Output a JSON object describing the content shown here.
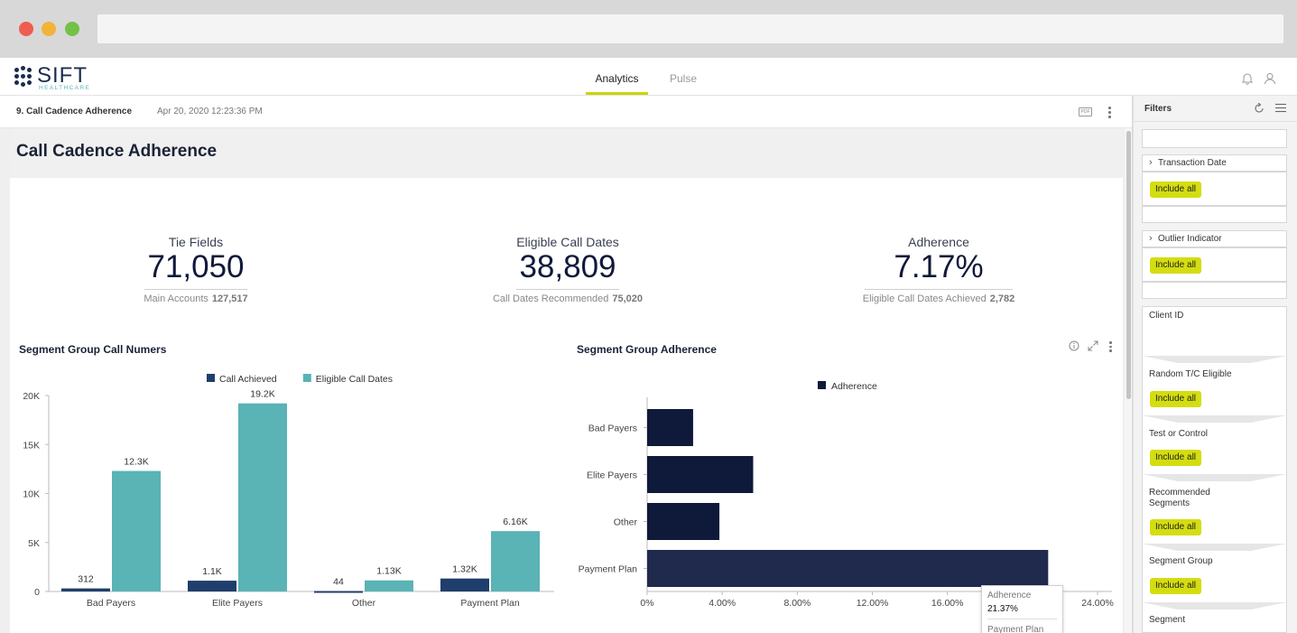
{
  "app": {
    "logo_text": "SIFT",
    "logo_sub": "HEALTHCARE",
    "tabs": [
      {
        "label": "Analytics",
        "active": true
      },
      {
        "label": "Pulse",
        "active": false
      }
    ],
    "icons": [
      "bell-icon",
      "user-icon"
    ]
  },
  "dashboard": {
    "name": "9. Call Cadence Adherence",
    "timestamp": "Apr 20, 2020 12:23:36 PM",
    "pdf_label": "PDF",
    "title": "Call Cadence Adherence"
  },
  "kpis": [
    {
      "label": "Tie Fields",
      "value": "71,050",
      "sub_label": "Main Accounts",
      "sub_value": "127,517"
    },
    {
      "label": "Eligible Call Dates",
      "value": "38,809",
      "sub_label": "Call Dates Recommended",
      "sub_value": "75,020"
    },
    {
      "label": "Adherence",
      "value": "7.17%",
      "sub_label": "Eligible Call Dates Achieved",
      "sub_value": "2,782"
    }
  ],
  "chart_data": [
    {
      "type": "bar",
      "title": "Segment Group Call Numers",
      "categories": [
        "Bad Payers",
        "Elite Payers",
        "Other",
        "Payment Plan"
      ],
      "series": [
        {
          "name": "Call Achieved",
          "color": "#1f3e6b",
          "values": [
            312,
            1100,
            44,
            1320
          ],
          "labels": [
            "312",
            "1.1K",
            "44",
            "1.32K"
          ]
        },
        {
          "name": "Eligible Call Dates",
          "color": "#5ab3b5",
          "values": [
            12300,
            19200,
            1130,
            6160
          ],
          "labels": [
            "12.3K",
            "19.2K",
            "1.13K",
            "6.16K"
          ]
        }
      ],
      "ylim": [
        0,
        20000
      ],
      "yticks": [
        "0",
        "5K",
        "10K",
        "15K",
        "20K"
      ],
      "xlabel": "",
      "ylabel": "",
      "legend_position": "top"
    },
    {
      "type": "bar",
      "orientation": "horizontal",
      "title": "Segment Group Adherence",
      "categories": [
        "Bad Payers",
        "Elite Payers",
        "Other",
        "Payment Plan"
      ],
      "series": [
        {
          "name": "Adherence",
          "color": "#0f1a3a",
          "values": [
            2.45,
            5.65,
            3.85,
            21.37
          ]
        }
      ],
      "xlim": [
        0,
        24
      ],
      "xticks": [
        "0%",
        "4.00%",
        "8.00%",
        "12.00%",
        "16.00%",
        "24.00%"
      ],
      "legend_position": "top"
    }
  ],
  "tooltip": {
    "series_label": "Adherence",
    "value": "21.37%",
    "category": "Payment Plan"
  },
  "filters": {
    "title": "Filters",
    "include_label": "Include all",
    "items": [
      {
        "label": "Transaction Date"
      },
      {
        "label": "Outlier Indicator"
      },
      {
        "label": "Client ID"
      },
      {
        "label": "Random T/C Eligible"
      },
      {
        "label": "Test or Control"
      },
      {
        "label": "Recommended\nSegments"
      },
      {
        "label": "Segment Group"
      },
      {
        "label": "Segment"
      }
    ]
  }
}
